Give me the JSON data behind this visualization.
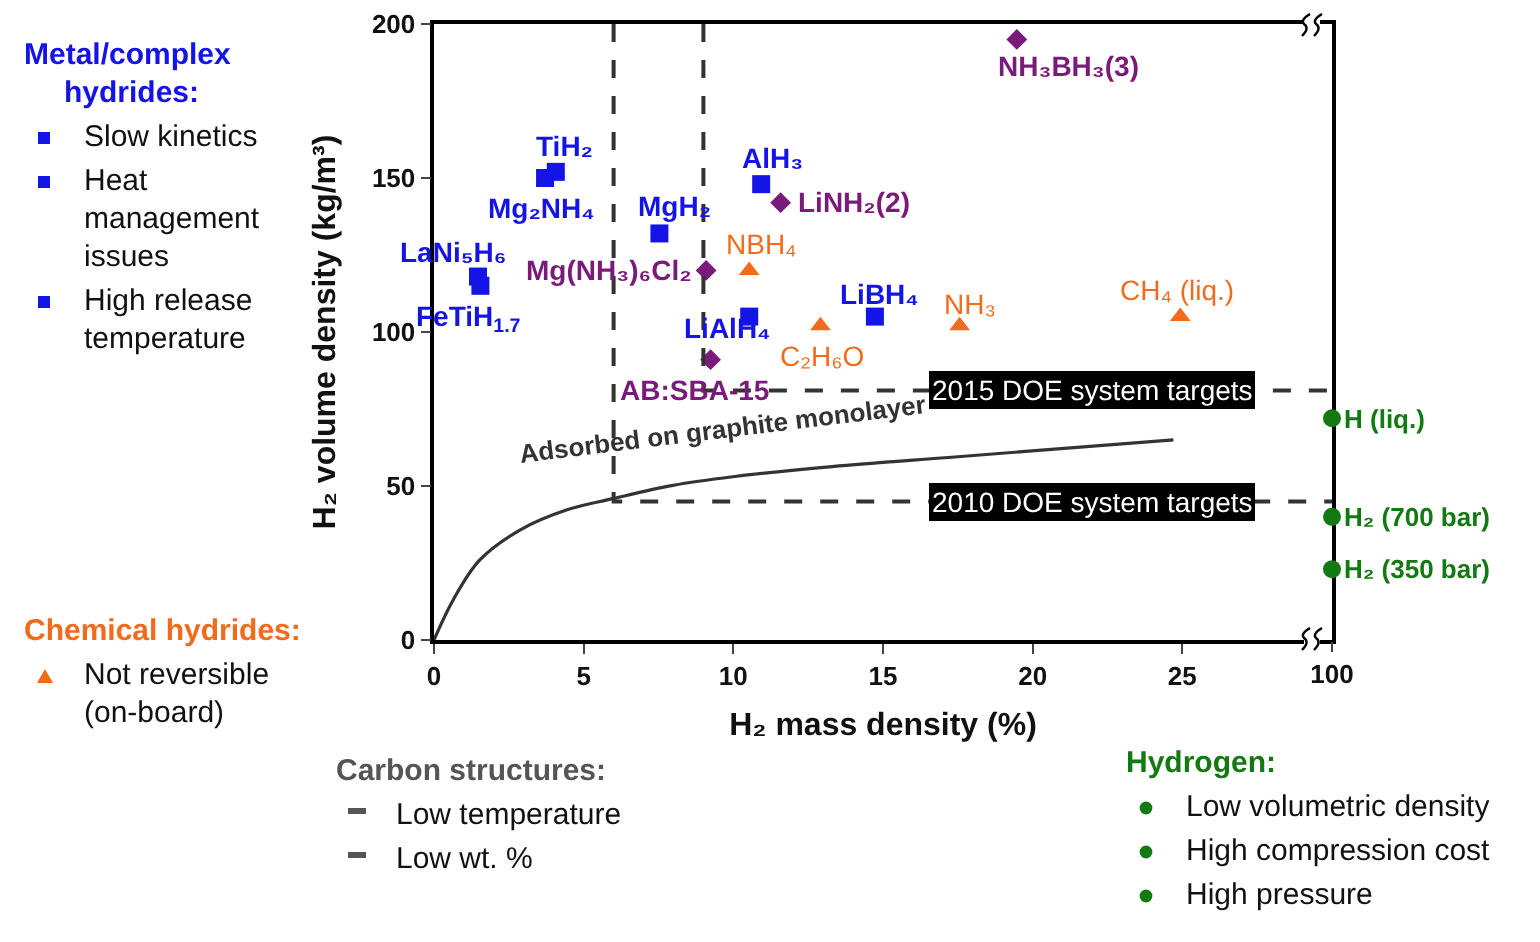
{
  "chart_data": [
    {
      "type": "scatter",
      "xlabel": "H₂ mass density (%)",
      "ylabel": "H₂ volume density (kg/m³)",
      "xlim": [
        0,
        30
      ],
      "xticks": [
        0,
        5,
        10,
        15,
        20,
        25
      ],
      "ylim": [
        0,
        200
      ],
      "yticks": [
        0,
        50,
        100,
        150,
        200
      ],
      "series": [
        {
          "marker": "square",
          "color": "#1414e6",
          "x": [
            4.07,
            3.71,
            7.53,
            1.47,
            1.55,
            10.93,
            10.53,
            14.73
          ],
          "values": [
            152,
            150,
            132,
            118,
            115,
            148,
            105,
            105
          ]
        },
        {
          "marker": "diamond",
          "color": "#7a1a7a",
          "x": [
            19.47,
            11.58,
            9.09,
            9.24
          ],
          "values": [
            195,
            142,
            120,
            91
          ]
        },
        {
          "marker": "triangle",
          "color": "#f26b1d",
          "x": [
            10.53,
            12.91,
            17.56,
            24.93
          ],
          "values": [
            120,
            102,
            102,
            105
          ]
        },
        {
          "type": "line",
          "marker": "none",
          "line_style": "solid",
          "color": "#333333",
          "x": [
            0,
            0.64,
            1.53,
            2.87,
            4.42,
            5.98,
            7.98,
            9.98,
            13.3,
            17.5,
            24.7
          ],
          "values": [
            0,
            13,
            26,
            35.7,
            42.2,
            45.9,
            50.2,
            53,
            56.3,
            59.5,
            65
          ]
        },
        {
          "type": "line",
          "marker": "none",
          "line_style": "dashed",
          "color": "#333333",
          "x": [
            9,
            9,
            30
          ],
          "values": [
            200,
            81,
            81
          ]
        },
        {
          "type": "line",
          "marker": "none",
          "line_style": "dashed",
          "color": "#333333",
          "x": [
            6,
            6,
            30
          ],
          "values": [
            200,
            45,
            45
          ]
        }
      ],
      "annotations": [
        {
          "text": "TiH₂",
          "x": 4.07,
          "y": 152
        },
        {
          "text": "Mg₂NH₄",
          "x": 3.71,
          "y": 150
        },
        {
          "text": "MgH₂",
          "x": 7.53,
          "y": 132
        },
        {
          "text": "LaNi₅H₆",
          "x": 1.47,
          "y": 118
        },
        {
          "text": "FeTiH$_{1.7}$",
          "x": 1.55,
          "y": 115
        },
        {
          "text": "AlH₃",
          "x": 10.93,
          "y": 148
        },
        {
          "text": "LiAlH₄",
          "x": 10.53,
          "y": 105
        },
        {
          "text": "LiBH₄",
          "x": 14.73,
          "y": 105
        },
        {
          "text": "NH₃BH₃(3)",
          "x": 19.47,
          "y": 195
        },
        {
          "text": "LiNH₂(2)",
          "x": 11.58,
          "y": 142
        },
        {
          "text": "Mg(NH₃)₆Cl₂",
          "x": 9.09,
          "y": 120
        },
        {
          "text": "AB:SBA-15",
          "x": 9.24,
          "y": 91
        },
        {
          "text": "NBH₄",
          "x": 10.53,
          "y": 120
        },
        {
          "text": "C₂H₆O",
          "x": 12.91,
          "y": 102
        },
        {
          "text": "NH₃",
          "x": 17.56,
          "y": 102
        },
        {
          "text": "CH₄ (liq.)",
          "x": 24.93,
          "y": 105
        },
        {
          "text": "Adsorbed on graphite monolayer",
          "x": 9.98,
          "y": 53
        },
        {
          "text": "2015 DOE system targets",
          "x": 22,
          "y": 81
        },
        {
          "text": "2010 DOE system targets",
          "x": 22,
          "y": 45
        },
        "Metal/complex hydrides:",
        "Slow kinetics",
        "Heat management issues",
        "High release temperature",
        "Chemical hydrides:",
        "Not reversible (on-board)",
        "Carbon structures:",
        "Low temperature",
        "Low wt. %",
        "Hydrogen:",
        "Low volumetric density",
        "High compression cost",
        "High pressure"
      ]
    },
    {
      "type": "scatter",
      "categories": [
        "100"
      ],
      "ylim": [
        0,
        200
      ],
      "tick_labels": "x",
      "series": [
        {
          "marker": "circle",
          "color": "#137a13",
          "x": [
            "100",
            "100",
            "100"
          ],
          "values": [
            72,
            40,
            23
          ]
        }
      ],
      "annotations": [
        {
          "text": "H (liq.)",
          "x": "100",
          "y": 72
        },
        {
          "text": "H₂ (700 bar)",
          "x": "100",
          "y": 40
        },
        {
          "text": "H₂ (350 bar)",
          "x": "100",
          "y": 23
        }
      ]
    }
  ]
}
